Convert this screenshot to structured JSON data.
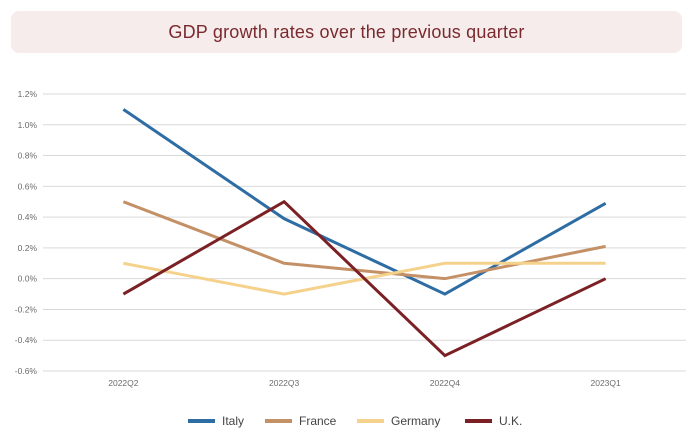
{
  "chart_data": {
    "type": "line",
    "title": "GDP growth rates over the previous quarter",
    "categories": [
      "2022Q2",
      "2022Q3",
      "2022Q4",
      "2023Q1"
    ],
    "ylim": [
      -0.6,
      1.2
    ],
    "yticks": [
      -0.6,
      -0.4,
      -0.2,
      0.0,
      0.2,
      0.4,
      0.6,
      0.8,
      1.0,
      1.2
    ],
    "ytick_labels": [
      "-0.6%",
      "-0.4%",
      "-0.2%",
      "0.0%",
      "0.2%",
      "0.4%",
      "0.6%",
      "0.8%",
      "1.0%",
      "1.2%"
    ],
    "grid": true,
    "legend_position": "bottom",
    "series": [
      {
        "name": "Italy",
        "color": "#2e6da4",
        "values": [
          1.1,
          0.39,
          -0.1,
          0.49
        ]
      },
      {
        "name": "France",
        "color": "#c49066",
        "values": [
          0.5,
          0.1,
          0.0,
          0.21
        ]
      },
      {
        "name": "Germany",
        "color": "#f5d28c",
        "values": [
          0.1,
          -0.1,
          0.1,
          0.1
        ]
      },
      {
        "name": "U.K.",
        "color": "#7b2024",
        "values": [
          -0.1,
          0.5,
          -0.5,
          0.0
        ]
      }
    ]
  }
}
